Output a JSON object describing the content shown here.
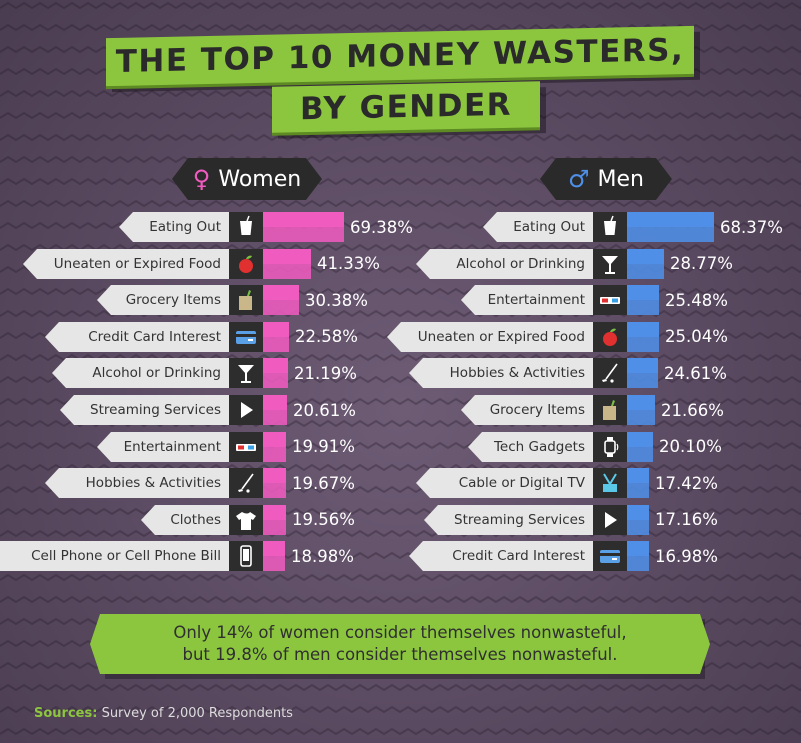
{
  "title_line1": "THE TOP 10 MONEY WASTERS,",
  "title_line2": "BY GENDER",
  "colors": {
    "women": "#f05bbf",
    "men": "#4f8fe8",
    "accent": "#8cc63f"
  },
  "chart_data": [
    {
      "type": "bar",
      "panel": "Women",
      "symbol": "♀",
      "categories": [
        "Eating Out",
        "Uneaten or Expired Food",
        "Grocery Items",
        "Credit Card Interest",
        "Alcohol or Drinking",
        "Streaming Services",
        "Entertainment",
        "Hobbies & Activities",
        "Clothes",
        "Cell Phone or Cell Phone Bill"
      ],
      "icons": [
        "cup-icon",
        "apple-icon",
        "grocery-bag-icon",
        "credit-card-icon",
        "cocktail-icon",
        "play-icon",
        "3d-glasses-icon",
        "golf-club-icon",
        "tshirt-icon",
        "cell-phone-icon"
      ],
      "values": [
        69.38,
        41.33,
        30.38,
        22.58,
        21.19,
        20.61,
        19.91,
        19.67,
        19.56,
        18.98
      ],
      "labels": [
        "69.38%",
        "41.33%",
        "30.38%",
        "22.58%",
        "21.19%",
        "20.61%",
        "19.91%",
        "19.67%",
        "19.56%",
        "18.98%"
      ],
      "xlim": [
        0,
        100
      ]
    },
    {
      "type": "bar",
      "panel": "Men",
      "symbol": "♂",
      "categories": [
        "Eating Out",
        "Alcohol or Drinking",
        "Entertainment",
        "Uneaten or Expired Food",
        "Hobbies & Activities",
        "Grocery Items",
        "Tech Gadgets",
        "Cable or Digital TV",
        "Streaming Services",
        "Credit Card Interest"
      ],
      "icons": [
        "cup-icon",
        "cocktail-icon",
        "3d-glasses-icon",
        "apple-icon",
        "golf-club-icon",
        "grocery-bag-icon",
        "smartwatch-icon",
        "tv-antenna-icon",
        "play-icon",
        "credit-card-icon"
      ],
      "values": [
        68.37,
        28.77,
        25.48,
        25.04,
        24.61,
        21.66,
        20.1,
        17.42,
        17.16,
        16.98
      ],
      "labels": [
        "68.37%",
        "28.77%",
        "25.48%",
        "25.04%",
        "24.61%",
        "21.66%",
        "20.10%",
        "17.42%",
        "17.16%",
        "16.98%"
      ],
      "xlim": [
        0,
        100
      ]
    }
  ],
  "callout": {
    "line1": "Only 14% of women consider themselves nonwasteful,",
    "line2": "but 19.8% of men consider themselves nonwasteful."
  },
  "sources": {
    "label": "Sources:",
    "text": "Survey of 2,000 Respondents"
  }
}
